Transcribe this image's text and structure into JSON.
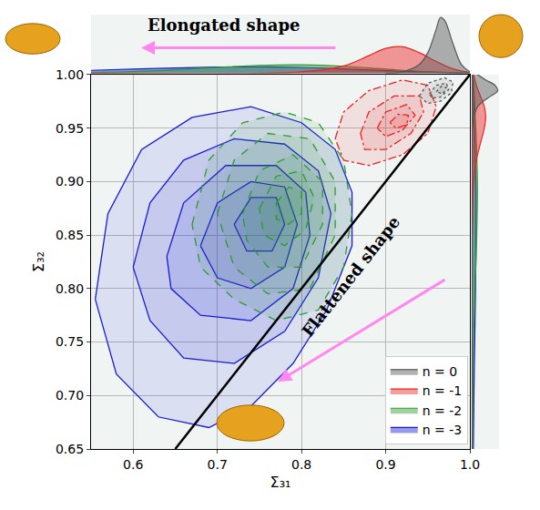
{
  "chart_data": {
    "type": "contour",
    "xlabel": "Σ₃₁",
    "ylabel": "Σ₃₂",
    "xlim": [
      0.55,
      1.0
    ],
    "ylim": [
      0.65,
      1.0
    ],
    "xticks": [
      0.6,
      0.7,
      0.8,
      0.9,
      {
        "value": 1.0,
        "label": "1.0"
      }
    ],
    "yticks": [
      0.65,
      {
        "value": 0.7,
        "label": "0.70"
      },
      0.75,
      {
        "value": 0.8,
        "label": "0.80"
      },
      0.85,
      {
        "value": 0.9,
        "label": "0.90"
      },
      0.95,
      {
        "value": 1.0,
        "label": "1.00"
      }
    ],
    "grid": true,
    "legend": "lower right",
    "density_lim": [
      0,
      20
    ],
    "reference_line": {
      "x": [
        0.65,
        1.0
      ],
      "y": [
        0.65,
        1.0
      ]
    },
    "annotations": [
      "Elongated shape",
      "Flattened shape"
    ],
    "series": [
      {
        "name": "n = 0",
        "color": "#555555",
        "line_style": "dot",
        "contours": [
          {
            "x": [
              0.94,
              0.95,
              0.97,
              0.98,
              0.978,
              0.965,
              0.95
            ],
            "y": [
              0.98,
              0.992,
              0.997,
              0.993,
              0.983,
              0.975,
              0.973
            ]
          },
          {
            "x": [
              0.952,
              0.96,
              0.972,
              0.975,
              0.965,
              0.955
            ],
            "y": [
              0.982,
              0.99,
              0.992,
              0.986,
              0.979,
              0.978
            ]
          },
          {
            "x": [
              0.96,
              0.966,
              0.972,
              0.968
            ],
            "y": [
              0.984,
              0.989,
              0.988,
              0.982
            ]
          }
        ],
        "x_density": {
          "x": [
            0.9,
            0.92,
            0.94,
            0.95,
            0.96,
            0.965,
            0.97,
            0.98,
            0.99,
            1.0
          ],
          "density": [
            0,
            0.5,
            3,
            7,
            15,
            19,
            18,
            10,
            3,
            0.5
          ]
        },
        "y_density": {
          "y": [
            0.95,
            0.96,
            0.97,
            0.975,
            0.98,
            0.985,
            0.99,
            0.995,
            1.0
          ],
          "density": [
            0,
            1,
            4,
            8,
            14,
            19,
            17,
            10,
            4
          ]
        }
      },
      {
        "name": "n = -1",
        "color": "#ee2222",
        "line_style": "dashdot",
        "contours": [
          {
            "x": [
              0.84,
              0.85,
              0.88,
              0.92,
              0.95,
              0.96,
              0.95,
              0.92,
              0.88,
              0.85
            ],
            "y": [
              0.94,
              0.965,
              0.985,
              0.995,
              0.99,
              0.97,
              0.945,
              0.925,
              0.915,
              0.92
            ]
          },
          {
            "x": [
              0.87,
              0.88,
              0.91,
              0.94,
              0.945,
              0.93,
              0.9,
              0.875
            ],
            "y": [
              0.945,
              0.965,
              0.98,
              0.98,
              0.965,
              0.945,
              0.93,
              0.93
            ]
          },
          {
            "x": [
              0.89,
              0.9,
              0.925,
              0.935,
              0.92,
              0.9
            ],
            "y": [
              0.95,
              0.965,
              0.972,
              0.962,
              0.948,
              0.942
            ]
          },
          {
            "x": [
              0.905,
              0.915,
              0.927,
              0.925,
              0.912
            ],
            "y": [
              0.955,
              0.963,
              0.962,
              0.953,
              0.95
            ]
          }
        ],
        "x_density": {
          "x": [
            0.55,
            0.8,
            0.85,
            0.88,
            0.9,
            0.92,
            0.94,
            0.96,
            0.98,
            1.0
          ],
          "density": [
            0,
            0.5,
            2.5,
            6,
            8.5,
            9,
            7,
            4,
            1.5,
            0.3
          ]
        },
        "y_density": {
          "y": [
            0.85,
            0.9,
            0.92,
            0.94,
            0.95,
            0.96,
            0.97,
            0.98,
            0.99,
            1.0
          ],
          "density": [
            0,
            1,
            3,
            7,
            9,
            10,
            9,
            6,
            3,
            1
          ]
        }
      },
      {
        "name": "n = -2",
        "color": "#2e9a2e",
        "line_style": "dash",
        "contours": [
          {
            "x": [
              0.67,
              0.69,
              0.73,
              0.78,
              0.82,
              0.85,
              0.86,
              0.85,
              0.82,
              0.77,
              0.72,
              0.68
            ],
            "y": [
              0.86,
              0.92,
              0.955,
              0.965,
              0.955,
              0.92,
              0.87,
              0.82,
              0.78,
              0.77,
              0.79,
              0.82
            ]
          },
          {
            "x": [
              0.7,
              0.72,
              0.76,
              0.81,
              0.84,
              0.84,
              0.81,
              0.76,
              0.72
            ],
            "y": [
              0.87,
              0.92,
              0.945,
              0.94,
              0.9,
              0.85,
              0.8,
              0.795,
              0.82
            ]
          },
          {
            "x": [
              0.73,
              0.75,
              0.79,
              0.825,
              0.825,
              0.8,
              0.76,
              0.735
            ],
            "y": [
              0.87,
              0.91,
              0.925,
              0.9,
              0.86,
              0.82,
              0.82,
              0.845
            ]
          },
          {
            "x": [
              0.75,
              0.77,
              0.8,
              0.815,
              0.805,
              0.78,
              0.755
            ],
            "y": [
              0.875,
              0.905,
              0.91,
              0.885,
              0.855,
              0.84,
              0.85
            ]
          },
          {
            "x": [
              0.77,
              0.785,
              0.8,
              0.8,
              0.785,
              0.77
            ],
            "y": [
              0.88,
              0.895,
              0.89,
              0.87,
              0.86,
              0.865
            ]
          }
        ],
        "x_density": {
          "x": [
            0.55,
            0.6,
            0.65,
            0.7,
            0.75,
            0.8,
            0.85,
            0.9,
            0.95,
            1.0
          ],
          "density": [
            0.3,
            0.6,
            1.2,
            2.0,
            2.7,
            2.9,
            2.4,
            1.4,
            0.5,
            0.1
          ]
        },
        "y_density": {
          "y": [
            0.65,
            0.7,
            0.75,
            0.8,
            0.85,
            0.9,
            0.95,
            1.0
          ],
          "density": [
            0.1,
            0.3,
            0.8,
            2.0,
            3.3,
            3.8,
            2.6,
            0.6
          ]
        }
      },
      {
        "name": "n = -3",
        "color": "#1a1ad6",
        "line_style": "solid",
        "contours": [
          {
            "x": [
              0.555,
              0.57,
              0.61,
              0.67,
              0.74,
              0.8,
              0.84,
              0.86,
              0.86,
              0.83,
              0.79,
              0.74,
              0.69,
              0.63,
              0.58
            ],
            "y": [
              0.79,
              0.87,
              0.93,
              0.96,
              0.97,
              0.955,
              0.93,
              0.89,
              0.84,
              0.78,
              0.73,
              0.69,
              0.67,
              0.68,
              0.72
            ]
          },
          {
            "x": [
              0.6,
              0.62,
              0.66,
              0.72,
              0.78,
              0.82,
              0.835,
              0.82,
              0.78,
              0.72,
              0.66,
              0.62
            ],
            "y": [
              0.82,
              0.88,
              0.92,
              0.94,
              0.935,
              0.91,
              0.87,
              0.81,
              0.76,
              0.73,
              0.735,
              0.77
            ]
          },
          {
            "x": [
              0.64,
              0.66,
              0.71,
              0.77,
              0.805,
              0.81,
              0.79,
              0.74,
              0.68,
              0.645
            ],
            "y": [
              0.83,
              0.88,
              0.915,
              0.915,
              0.89,
              0.85,
              0.8,
              0.77,
              0.775,
              0.8
            ]
          },
          {
            "x": [
              0.68,
              0.7,
              0.74,
              0.78,
              0.795,
              0.78,
              0.74,
              0.7
            ],
            "y": [
              0.84,
              0.88,
              0.9,
              0.895,
              0.86,
              0.82,
              0.8,
              0.81
            ]
          },
          {
            "x": [
              0.72,
              0.74,
              0.77,
              0.78,
              0.765,
              0.735
            ],
            "y": [
              0.86,
              0.885,
              0.885,
              0.86,
              0.835,
              0.835
            ]
          }
        ],
        "x_density": {
          "x": [
            0.55,
            0.6,
            0.65,
            0.7,
            0.75,
            0.8,
            0.85,
            0.9,
            0.95,
            1.0
          ],
          "density": [
            1.0,
            1.4,
            1.8,
            2.1,
            2.2,
            2.0,
            1.5,
            0.9,
            0.4,
            0.1
          ]
        },
        "y_density": {
          "y": [
            0.65,
            0.7,
            0.75,
            0.8,
            0.85,
            0.9,
            0.95,
            1.0
          ],
          "density": [
            0.8,
            1.2,
            1.8,
            2.4,
            2.8,
            2.6,
            1.6,
            0.4
          ]
        }
      }
    ]
  }
}
